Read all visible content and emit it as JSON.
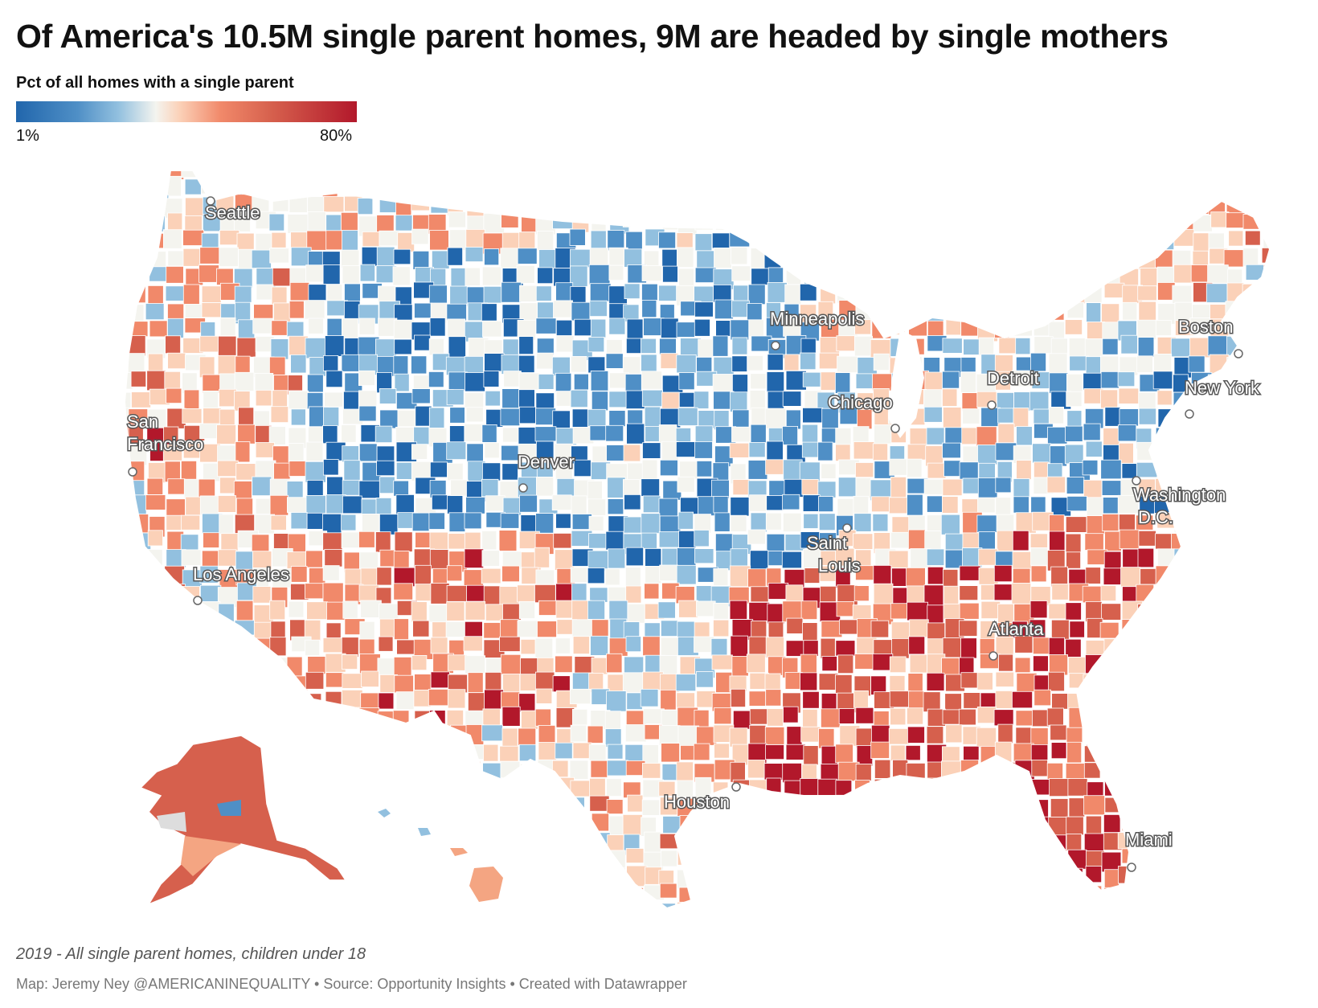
{
  "title": "Of America's 10.5M single parent homes, 9M are headed by single mothers",
  "legend": {
    "title": "Pct of all homes with a single parent",
    "min_label": "1%",
    "max_label": "80%",
    "min_value": 1,
    "max_value": 80,
    "colors": [
      "#2166ac",
      "#4f8fc6",
      "#92c0df",
      "#f4f4ef",
      "#fbd1b8",
      "#f1896a",
      "#d6604d",
      "#b2182b"
    ]
  },
  "cities": [
    {
      "id": "seattle",
      "label": "Seattle"
    },
    {
      "id": "san-francisco",
      "label": "San Francisco"
    },
    {
      "id": "los-angeles",
      "label": "Los Angeles"
    },
    {
      "id": "denver",
      "label": "Denver"
    },
    {
      "id": "minneapolis",
      "label": "Minneapolis"
    },
    {
      "id": "chicago",
      "label": "Chicago"
    },
    {
      "id": "detroit",
      "label": "Detroit"
    },
    {
      "id": "saint-louis",
      "label": "Saint Louis"
    },
    {
      "id": "houston",
      "label": "Houston"
    },
    {
      "id": "atlanta",
      "label": "Atlanta"
    },
    {
      "id": "boston",
      "label": "Boston"
    },
    {
      "id": "new-york",
      "label": "New York"
    },
    {
      "id": "washington-dc",
      "label": "Washington D.C."
    },
    {
      "id": "miami",
      "label": "Miami"
    }
  ],
  "note": "2019 - All single parent homes, children under 18",
  "credits": "Map: Jeremy Ney @AMERICANINEQUALITY • Source: Opportunity Insights • Created with Datawrapper"
}
